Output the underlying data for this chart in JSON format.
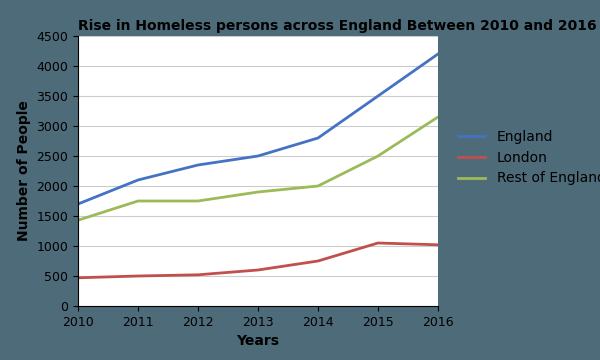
{
  "title": "Rise in Homeless persons across England Between 2010 and 2016",
  "xlabel": "Years",
  "ylabel": "Number of People",
  "years": [
    2010,
    2011,
    2012,
    2013,
    2014,
    2015,
    2016
  ],
  "series": {
    "England": {
      "values": [
        1700,
        2100,
        2350,
        2500,
        2800,
        3500,
        4200
      ],
      "color": "#4472C4",
      "linewidth": 2.0
    },
    "London": {
      "values": [
        470,
        500,
        520,
        600,
        750,
        1050,
        1020
      ],
      "color": "#C0504D",
      "linewidth": 2.0
    },
    "Rest of England": {
      "values": [
        1430,
        1750,
        1750,
        1900,
        2000,
        2500,
        3150
      ],
      "color": "#9BBB59",
      "linewidth": 2.0
    }
  },
  "ylim": [
    0,
    4500
  ],
  "yticks": [
    0,
    500,
    1000,
    1500,
    2000,
    2500,
    3000,
    3500,
    4000,
    4500
  ],
  "background_color": "#4E6B7A",
  "plot_bg_color": "#ffffff",
  "title_fontsize": 10,
  "axis_label_fontsize": 10,
  "tick_fontsize": 9,
  "legend_fontsize": 10
}
